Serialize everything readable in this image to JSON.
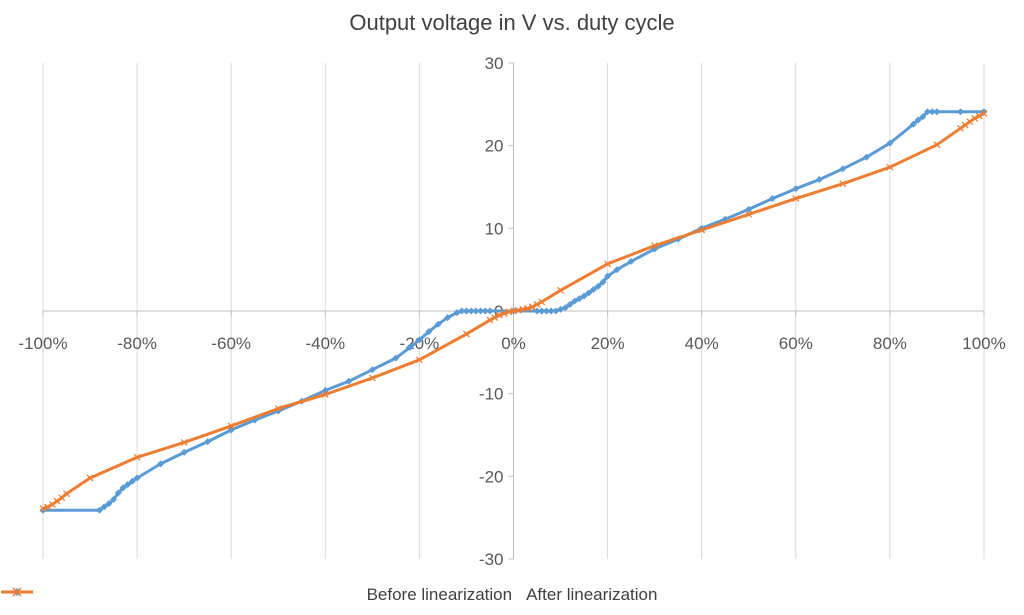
{
  "chart_data": {
    "type": "line",
    "title": "Output voltage in V vs. duty cycle",
    "xlabel": "",
    "ylabel": "",
    "xlim": [
      -100,
      100
    ],
    "ylim": [
      -30,
      30
    ],
    "x_tick_labels": [
      "-100%",
      "-80%",
      "-60%",
      "-40%",
      "-20%",
      "0%",
      "20%",
      "40%",
      "60%",
      "80%",
      "100%"
    ],
    "x_ticks": [
      -100,
      -80,
      -60,
      -40,
      -20,
      0,
      20,
      40,
      60,
      80,
      100
    ],
    "y_ticks": [
      -30,
      -20,
      -10,
      0,
      10,
      20,
      30
    ],
    "y_tick_labels": [
      "-30",
      "-20",
      "-10",
      "0",
      "10",
      "20",
      "30"
    ],
    "grid": "vertical",
    "legend_position": "bottom",
    "series": [
      {
        "name": "Before linearization",
        "color": "#5B9BD5",
        "marker": "diamond",
        "points": [
          [
            -100,
            -24.1
          ],
          [
            -88,
            -24.1
          ],
          [
            -87,
            -23.7
          ],
          [
            -86,
            -23.3
          ],
          [
            -85,
            -22.8
          ],
          [
            -84,
            -22.0
          ],
          [
            -83,
            -21.4
          ],
          [
            -82,
            -21.0
          ],
          [
            -81,
            -20.6
          ],
          [
            -80,
            -20.2
          ],
          [
            -75,
            -18.5
          ],
          [
            -70,
            -17.1
          ],
          [
            -65,
            -15.8
          ],
          [
            -60,
            -14.4
          ],
          [
            -55,
            -13.2
          ],
          [
            -50,
            -12.1
          ],
          [
            -45,
            -10.9
          ],
          [
            -40,
            -9.6
          ],
          [
            -35,
            -8.5
          ],
          [
            -30,
            -7.1
          ],
          [
            -25,
            -5.7
          ],
          [
            -22,
            -4.4
          ],
          [
            -20,
            -3.5
          ],
          [
            -18,
            -2.5
          ],
          [
            -16,
            -1.6
          ],
          [
            -14,
            -0.8
          ],
          [
            -12,
            -0.2
          ],
          [
            -11,
            0
          ],
          [
            -10,
            0
          ],
          [
            -9,
            0
          ],
          [
            -8,
            0
          ],
          [
            -7,
            0
          ],
          [
            -6,
            0
          ],
          [
            -5,
            0
          ],
          [
            0,
            0
          ],
          [
            5,
            0
          ],
          [
            6,
            0
          ],
          [
            7,
            0
          ],
          [
            8,
            0
          ],
          [
            9,
            0
          ],
          [
            10,
            0.2
          ],
          [
            11,
            0.4
          ],
          [
            12,
            0.8
          ],
          [
            13,
            1.2
          ],
          [
            14,
            1.5
          ],
          [
            15,
            1.8
          ],
          [
            16,
            2.2
          ],
          [
            17,
            2.6
          ],
          [
            18,
            3.0
          ],
          [
            19,
            3.5
          ],
          [
            20,
            4.2
          ],
          [
            22,
            5.0
          ],
          [
            25,
            6.0
          ],
          [
            30,
            7.5
          ],
          [
            35,
            8.7
          ],
          [
            40,
            10.0
          ],
          [
            45,
            11.1
          ],
          [
            50,
            12.3
          ],
          [
            55,
            13.6
          ],
          [
            60,
            14.8
          ],
          [
            65,
            15.9
          ],
          [
            70,
            17.2
          ],
          [
            75,
            18.6
          ],
          [
            80,
            20.3
          ],
          [
            85,
            22.6
          ],
          [
            86,
            23.1
          ],
          [
            87,
            23.5
          ],
          [
            88,
            24.1
          ],
          [
            89,
            24.1
          ],
          [
            90,
            24.1
          ],
          [
            95,
            24.1
          ],
          [
            100,
            24.1
          ]
        ]
      },
      {
        "name": "After linearization",
        "color": "#ED7D31",
        "marker": "x",
        "points": [
          [
            -100,
            -23.9
          ],
          [
            -99,
            -23.7
          ],
          [
            -98,
            -23.4
          ],
          [
            -97,
            -23.0
          ],
          [
            -96,
            -22.6
          ],
          [
            -95,
            -22.1
          ],
          [
            -90,
            -20.2
          ],
          [
            -80,
            -17.7
          ],
          [
            -70,
            -15.9
          ],
          [
            -60,
            -13.9
          ],
          [
            -50,
            -11.8
          ],
          [
            -40,
            -10.1
          ],
          [
            -30,
            -8.1
          ],
          [
            -20,
            -5.9
          ],
          [
            -10,
            -2.8
          ],
          [
            -5,
            -1.1
          ],
          [
            -4,
            -0.8
          ],
          [
            -3,
            -0.5
          ],
          [
            -2,
            -0.3
          ],
          [
            -1,
            -0.1
          ],
          [
            0,
            0
          ],
          [
            1,
            0.1
          ],
          [
            2,
            0.2
          ],
          [
            3,
            0.3
          ],
          [
            4,
            0.5
          ],
          [
            5,
            0.8
          ],
          [
            6,
            1.1
          ],
          [
            10,
            2.5
          ],
          [
            20,
            5.7
          ],
          [
            30,
            7.9
          ],
          [
            40,
            9.8
          ],
          [
            50,
            11.7
          ],
          [
            60,
            13.6
          ],
          [
            70,
            15.4
          ],
          [
            80,
            17.4
          ],
          [
            90,
            20.1
          ],
          [
            95,
            22.1
          ],
          [
            96,
            22.5
          ],
          [
            97,
            22.9
          ],
          [
            98,
            23.3
          ],
          [
            99,
            23.6
          ],
          [
            100,
            23.9
          ]
        ]
      }
    ]
  }
}
